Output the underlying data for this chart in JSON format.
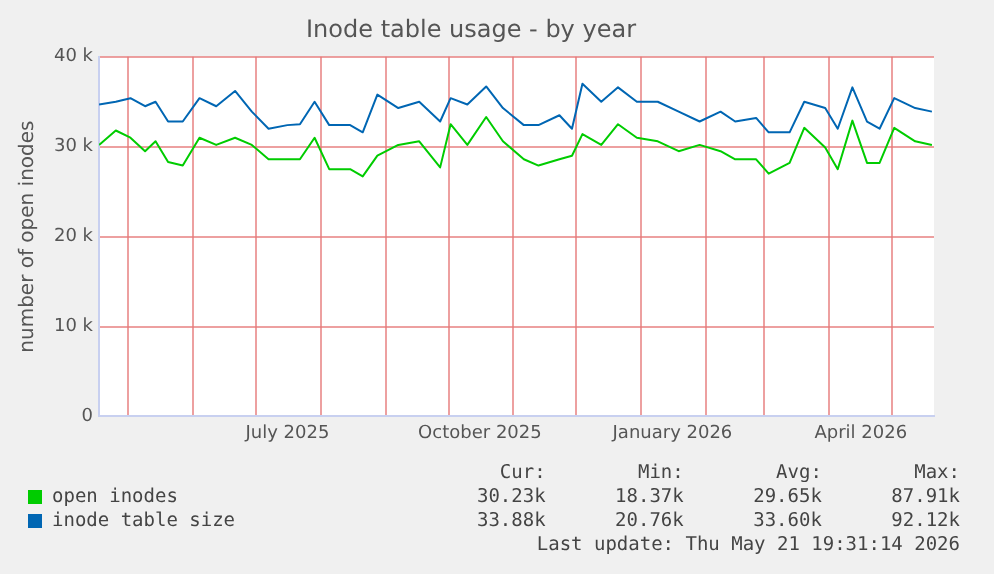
{
  "chart_data": {
    "type": "line",
    "title": "Inode table usage - by year",
    "ylabel": "number of open inodes",
    "x": [
      "2025-04-17",
      "2025-04-25",
      "2025-05-02",
      "2025-05-09",
      "2025-05-14",
      "2025-05-20",
      "2025-05-27",
      "2025-06-04",
      "2025-06-12",
      "2025-06-21",
      "2025-06-29",
      "2025-07-07",
      "2025-07-16",
      "2025-07-22",
      "2025-07-29",
      "2025-08-05",
      "2025-08-15",
      "2025-08-21",
      "2025-08-28",
      "2025-09-07",
      "2025-09-17",
      "2025-09-27",
      "2025-10-02",
      "2025-10-10",
      "2025-10-19",
      "2025-10-27",
      "2025-11-06",
      "2025-11-13",
      "2025-11-23",
      "2025-11-29",
      "2025-12-04",
      "2025-12-13",
      "2025-12-21",
      "2025-12-30",
      "2026-01-09",
      "2026-01-19",
      "2026-01-29",
      "2026-02-08",
      "2026-02-15",
      "2026-02-25",
      "2026-03-03",
      "2026-03-13",
      "2026-03-20",
      "2026-03-30",
      "2026-04-05",
      "2026-04-12",
      "2026-04-19",
      "2026-04-25",
      "2026-05-02",
      "2026-05-12",
      "2026-05-20"
    ],
    "series": [
      {
        "name": "open inodes",
        "color": "#00cc00",
        "values": [
          30200,
          31800,
          31000,
          29500,
          30600,
          28300,
          27900,
          31000,
          30200,
          31000,
          30200,
          28600,
          28600,
          28600,
          31000,
          27500,
          27500,
          26700,
          29000,
          30200,
          30600,
          27700,
          32500,
          30200,
          33300,
          30600,
          28600,
          27900,
          28600,
          29000,
          31400,
          30200,
          32500,
          31000,
          30600,
          29500,
          30200,
          29500,
          28600,
          28600,
          27000,
          28200,
          32100,
          29900,
          27500,
          32900,
          28200,
          28200,
          32100,
          30600,
          30200
        ]
      },
      {
        "name": "inode table size",
        "color": "#0066b3",
        "values": [
          34700,
          35000,
          35400,
          34500,
          35000,
          32800,
          32800,
          35400,
          34500,
          36200,
          33900,
          32000,
          32400,
          32500,
          35000,
          32400,
          32400,
          31600,
          35800,
          34300,
          35000,
          32800,
          35400,
          34700,
          36700,
          34300,
          32400,
          32400,
          33500,
          32000,
          37000,
          35000,
          36600,
          35000,
          35000,
          33900,
          32800,
          33900,
          32800,
          33200,
          31600,
          31600,
          35000,
          34300,
          32000,
          36600,
          32800,
          32000,
          35400,
          34300,
          33900
        ]
      }
    ],
    "xlim": [
      "2025-04-17",
      "2026-05-21"
    ],
    "xticks": [
      {
        "value": "2025-05-01",
        "label": null
      },
      {
        "value": "2025-06-01",
        "label": null
      },
      {
        "value": "2025-07-01",
        "label": null
      },
      {
        "value": "2025-07-16",
        "label": "July 2025"
      },
      {
        "value": "2025-08-01",
        "label": null
      },
      {
        "value": "2025-09-01",
        "label": null
      },
      {
        "value": "2025-10-01",
        "label": null
      },
      {
        "value": "2025-10-16",
        "label": "October 2025"
      },
      {
        "value": "2025-11-01",
        "label": null
      },
      {
        "value": "2025-12-01",
        "label": null
      },
      {
        "value": "2026-01-01",
        "label": null
      },
      {
        "value": "2026-01-16",
        "label": "January 2026"
      },
      {
        "value": "2026-02-01",
        "label": null
      },
      {
        "value": "2026-03-01",
        "label": null
      },
      {
        "value": "2026-04-01",
        "label": null
      },
      {
        "value": "2026-04-16",
        "label": "April 2026"
      },
      {
        "value": "2026-05-01",
        "label": null
      }
    ],
    "ylim": [
      0,
      40000
    ],
    "yticks": [
      0,
      {
        "value": 10000,
        "label": "10 k"
      },
      {
        "value": 20000,
        "label": "20 k"
      },
      {
        "value": 30000,
        "label": "30 k"
      },
      {
        "value": 40000,
        "label": "40 k"
      }
    ],
    "grid": true,
    "legend": "bottom",
    "marker": "none",
    "line_style": "solid",
    "annotations": [
      "Cur:",
      "Min:",
      "Avg:",
      "Max:",
      "30.23k",
      "18.37k",
      "29.65k",
      "87.91k",
      "33.88k",
      "20.76k",
      "33.60k",
      "92.12k",
      "Last update: Thu May 21 19:31:14 2026"
    ]
  }
}
